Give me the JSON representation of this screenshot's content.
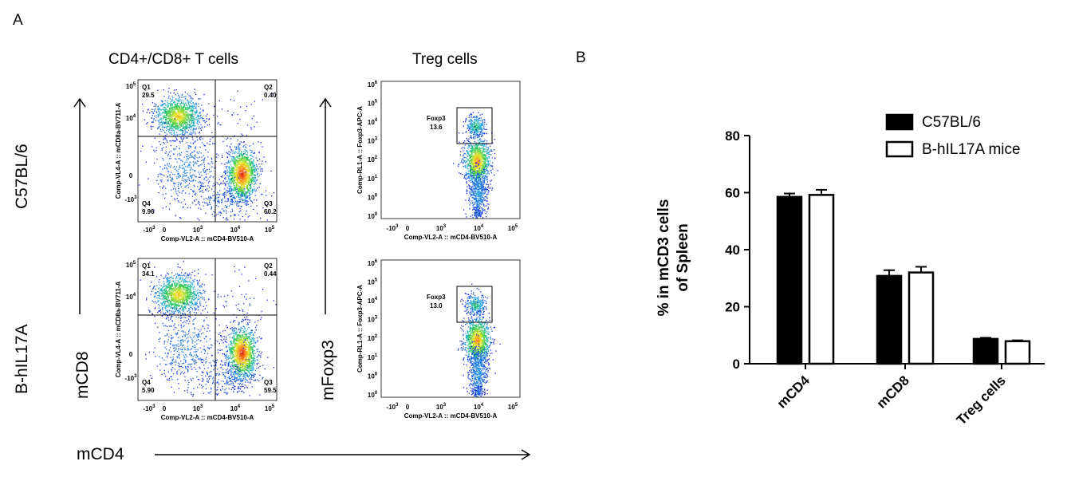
{
  "panel_a": {
    "letter": "A",
    "col_titles": [
      "CD4+/CD8+ T cells",
      "Treg cells"
    ],
    "row_labels": [
      "C57BL/6",
      "B-hIL17A"
    ],
    "y_axis_marker_1": "mCD8",
    "y_axis_marker_2": "mFoxp3",
    "x_axis_marker": "mCD4",
    "dot_plots": [
      {
        "x_label": "Comp-VL2-A :: mCD4-BV510-A",
        "y_label": "Comp-VL4-A :: mCD8a-BV711-A",
        "x_ticks": [
          "-10",
          "0",
          "10",
          "10",
          "10"
        ],
        "x_tick_exp": [
          "3",
          "",
          "3",
          "4",
          "5"
        ],
        "y_ticks": [
          "10",
          "10",
          "0",
          "-10"
        ],
        "y_tick_exp": [
          "5",
          "4",
          "",
          "3"
        ],
        "quadrants": [
          {
            "id": "Q1",
            "value": "29.5"
          },
          {
            "id": "Q2",
            "value": "0.40"
          },
          {
            "id": "Q3",
            "value": "60.2"
          },
          {
            "id": "Q4",
            "value": "9.96"
          }
        ]
      },
      {
        "x_label": "Comp-VL2-A :: mCD4-BV510-A",
        "y_label": "Comp-VL4-A :: mCD8a-BV711-A",
        "x_ticks": [
          "-10",
          "0",
          "10",
          "10",
          "10"
        ],
        "x_tick_exp": [
          "3",
          "",
          "3",
          "4",
          "5"
        ],
        "y_ticks": [
          "10",
          "10",
          "0",
          "-10"
        ],
        "y_tick_exp": [
          "5",
          "4",
          "",
          "3"
        ],
        "quadrants": [
          {
            "id": "Q1",
            "value": "34.1"
          },
          {
            "id": "Q2",
            "value": "0.44"
          },
          {
            "id": "Q3",
            "value": "59.5"
          },
          {
            "id": "Q4",
            "value": "5.90"
          }
        ]
      }
    ],
    "treg_plots": [
      {
        "x_label": "Comp-VL2-A :: mCD4-BV510-A",
        "y_label": "Comp-RL1-A :: Foxp3-APC-A",
        "x_ticks": [
          "-10",
          "0",
          "10",
          "10",
          "10"
        ],
        "x_tick_exp": [
          "3",
          "",
          "3",
          "4",
          "5"
        ],
        "y_ticks": [
          "10",
          "10",
          "10",
          "10",
          "10",
          "10",
          "10",
          "10"
        ],
        "y_tick_exp": [
          "6",
          "5",
          "4",
          "3",
          "2",
          "1",
          "0",
          "0"
        ],
        "gate": {
          "name": "Foxp3",
          "value": "13.6"
        }
      },
      {
        "x_label": "Comp-VL2-A :: mCD4-BV510-A",
        "y_label": "Comp-RL1-A :: Foxp3-APC-A",
        "x_ticks": [
          "-10",
          "0",
          "10",
          "10",
          "10"
        ],
        "x_tick_exp": [
          "3",
          "",
          "3",
          "4",
          "5"
        ],
        "y_ticks": [
          "10",
          "10",
          "10",
          "10",
          "10",
          "10",
          "10",
          "10"
        ],
        "y_tick_exp": [
          "6",
          "5",
          "4",
          "3",
          "2",
          "1",
          "0",
          "0"
        ],
        "gate": {
          "name": "Foxp3",
          "value": "13.0"
        }
      }
    ]
  },
  "panel_b": {
    "letter": "B"
  },
  "chart_data": {
    "type": "bar",
    "categories": [
      "mCD4",
      "mCD8",
      "Treg cells"
    ],
    "series": [
      {
        "name": "C57BL/6",
        "values": [
          58.5,
          30.8,
          8.7
        ],
        "errors": [
          1.2,
          2.0,
          0.4
        ],
        "color": "#000000"
      },
      {
        "name": "B-hIL17A mice",
        "values": [
          59.2,
          32.0,
          7.9
        ],
        "errors": [
          1.8,
          2.0,
          0.3
        ],
        "color": "#ffffff"
      }
    ],
    "ylabel_line1": "% in mCD3 cells",
    "ylabel_line2": "of Spleen",
    "ylim": [
      0,
      80
    ],
    "yticks": [
      "0",
      "20",
      "40",
      "60",
      "80"
    ],
    "legend_position": "top-right",
    "grid": false
  }
}
